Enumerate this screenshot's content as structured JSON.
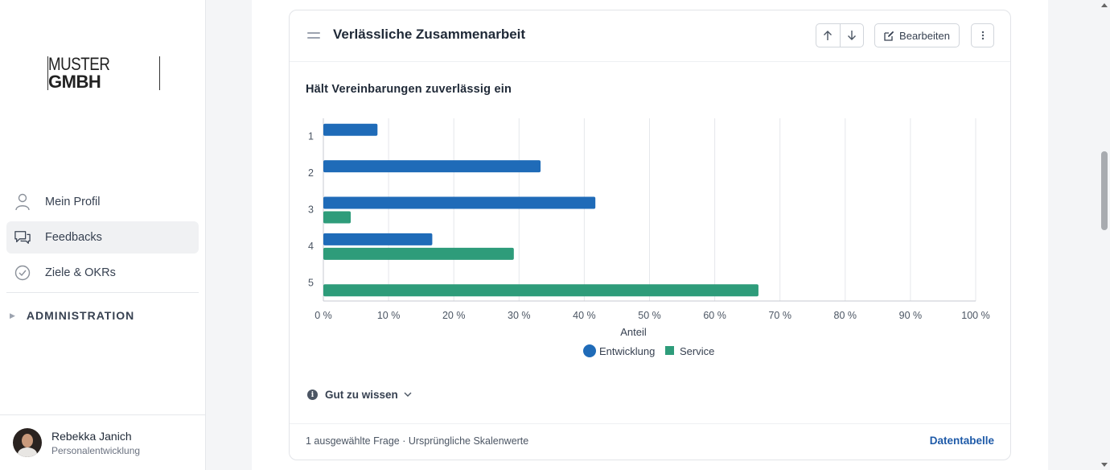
{
  "sidebar": {
    "logo": {
      "part1": "MUSTER",
      "part2": "GMBH"
    },
    "items": [
      {
        "label": "Mein Profil",
        "icon": "user-icon",
        "active": false
      },
      {
        "label": "Feedbacks",
        "icon": "chat-icon",
        "active": true
      },
      {
        "label": "Ziele & OKRs",
        "icon": "check-circle-icon",
        "active": false
      }
    ],
    "admin_label": "ADMINISTRATION",
    "user": {
      "name": "Rebekka Janich",
      "role": "Personalentwicklung"
    }
  },
  "card": {
    "title": "Verlässliche Zusammenarbeit",
    "edit_label": "Bearbeiten",
    "question": "Hält Vereinbarungen zuverlässig ein",
    "info_label": "Gut zu wissen",
    "footer_left": "1 ausgewählte Frage · Ursprüngliche Skalenwerte",
    "footer_right": "Datentabelle"
  },
  "chart_data": {
    "type": "bar",
    "orientation": "horizontal",
    "categories": [
      "1",
      "2",
      "3",
      "4",
      "5"
    ],
    "series": [
      {
        "name": "Entwicklung",
        "color": "#1f6bb8",
        "values": [
          8.3,
          33.3,
          41.7,
          16.7,
          0
        ]
      },
      {
        "name": "Service",
        "color": "#2e9c7a",
        "values": [
          0,
          0,
          4.2,
          29.2,
          66.7
        ]
      }
    ],
    "xlabel": "Anteil",
    "xlim": [
      0,
      100
    ],
    "xticks": [
      "0 %",
      "10 %",
      "20 %",
      "30 %",
      "40 %",
      "50 %",
      "60 %",
      "70 %",
      "80 %",
      "90 %",
      "100 %"
    ],
    "grid": true,
    "legend": "bottom-center"
  }
}
